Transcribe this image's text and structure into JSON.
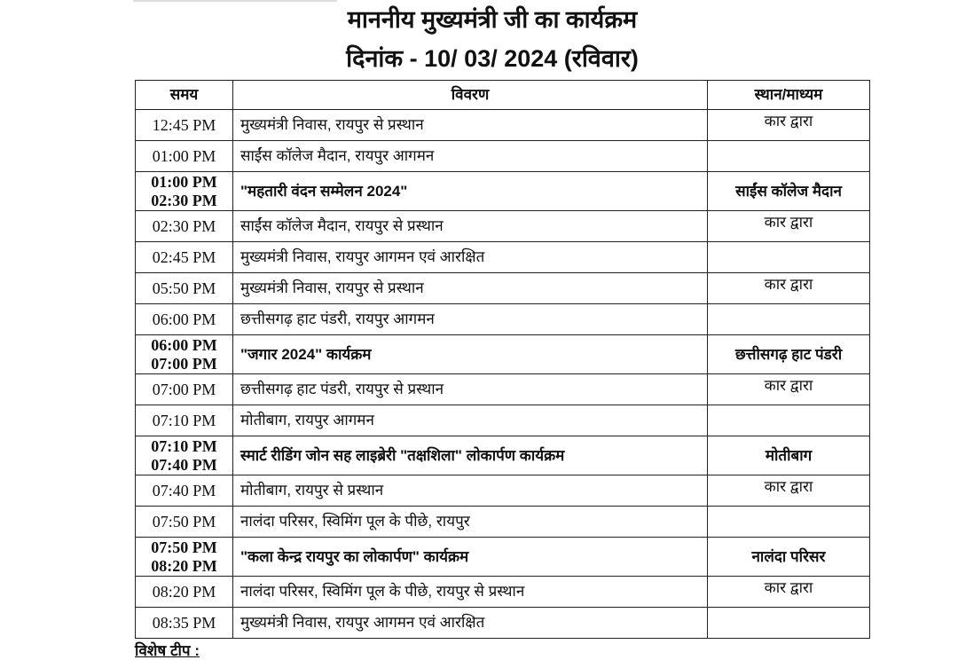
{
  "title": "माननीय मुख्यमंत्री जी का कार्यक्रम",
  "date_line": "दिनांक - 10/ 03/ 2024 (रविवार)",
  "columns": [
    "समय",
    "विवरण",
    "स्थान/माध्यम"
  ],
  "rows": [
    {
      "time": [
        "12:45 PM"
      ],
      "desc": "मुख्यमंत्री निवास, रायपुर से प्रस्थान",
      "place": "कार द्वारा",
      "bold": false
    },
    {
      "time": [
        "01:00 PM"
      ],
      "desc": "साईंस कॉलेज मैदान, रायपुर आगमन",
      "place": "",
      "bold": false
    },
    {
      "time": [
        "01:00 PM",
        "02:30 PM"
      ],
      "desc": "\"महतारी वंदन सम्मेलन 2024\"",
      "place": "साईंस कॉलेज मैदान",
      "bold": true
    },
    {
      "time": [
        "02:30 PM"
      ],
      "desc": "साईंस कॉलेज मैदान, रायपुर से प्रस्थान",
      "place": "कार द्वारा",
      "bold": false
    },
    {
      "time": [
        "02:45 PM"
      ],
      "desc": "मुख्यमंत्री निवास, रायपुर आगमन एवं आरक्षित",
      "place": "",
      "bold": false
    },
    {
      "time": [
        "05:50 PM"
      ],
      "desc": "मुख्यमंत्री निवास, रायपुर से प्रस्थान",
      "place": "कार द्वारा",
      "bold": false
    },
    {
      "time": [
        "06:00 PM"
      ],
      "desc": "छत्तीसगढ़ हाट पंडरी, रायपुर आगमन",
      "place": "",
      "bold": false
    },
    {
      "time": [
        "06:00 PM",
        "07:00 PM"
      ],
      "desc": "\"जगार 2024\" कार्यक्रम",
      "place": "छत्तीसगढ़ हाट पंडरी",
      "bold": true
    },
    {
      "time": [
        "07:00 PM"
      ],
      "desc": "छत्तीसगढ़ हाट पंडरी, रायपुर से प्रस्थान",
      "place": "कार द्वारा",
      "bold": false
    },
    {
      "time": [
        "07:10 PM"
      ],
      "desc": "मोतीबाग, रायपुर आगमन",
      "place": "",
      "bold": false
    },
    {
      "time": [
        "07:10 PM",
        "07:40 PM"
      ],
      "desc": "स्मार्ट रीडिंग जोन सह लाइब्रेरी \"तक्षशिला\" लोकार्पण कार्यक्रम",
      "place": "मोतीबाग",
      "bold": true
    },
    {
      "time": [
        "07:40 PM"
      ],
      "desc": "मोतीबाग, रायपुर से प्रस्थान",
      "place": "कार द्वारा",
      "bold": false
    },
    {
      "time": [
        "07:50 PM"
      ],
      "desc": "नालंदा परिसर, स्विमिंग पूल के पीछे, रायपुर",
      "place": "",
      "bold": false
    },
    {
      "time": [
        "07:50 PM",
        "08:20 PM"
      ],
      "desc": "\"कला केन्द्र रायपुर का लोकार्पण\" कार्यक्रम",
      "place": "नालंदा परिसर",
      "bold": true
    },
    {
      "time": [
        "08:20 PM"
      ],
      "desc": "नालंदा परिसर, स्विमिंग पूल के पीछे, रायपुर से प्रस्थान",
      "place": "कार द्वारा",
      "bold": false
    },
    {
      "time": [
        "08:35 PM"
      ],
      "desc": "मुख्यमंत्री निवास, रायपुर आगमन एवं आरक्षित",
      "place": "",
      "bold": false
    }
  ],
  "note": "विशेष टीप :"
}
